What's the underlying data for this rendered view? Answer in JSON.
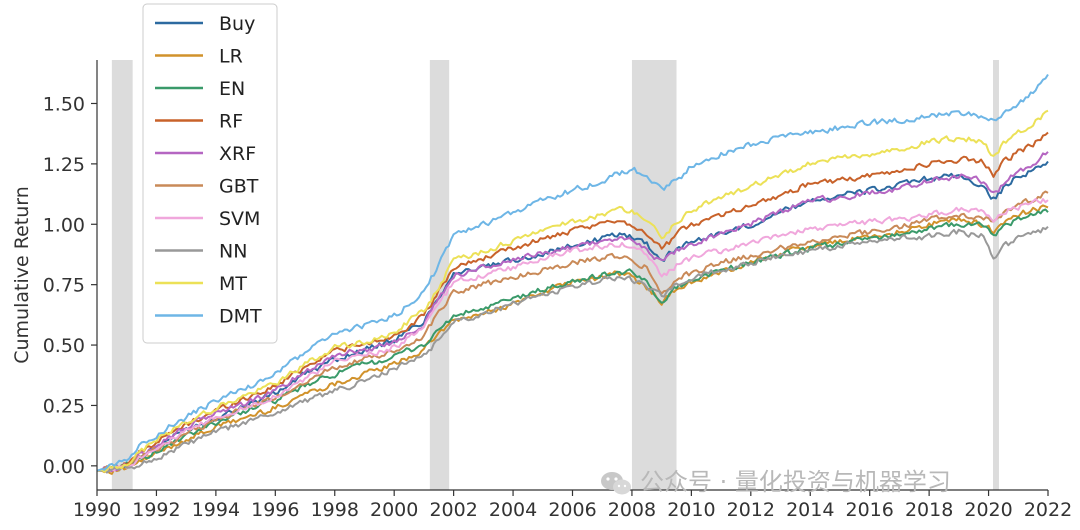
{
  "chart_data": {
    "type": "line",
    "title": "",
    "xlabel": "",
    "ylabel": "Cumulative Return",
    "xlim": [
      1990,
      2022
    ],
    "ylim": [
      -0.1,
      1.68
    ],
    "x_ticks": [
      1990,
      1992,
      1994,
      1996,
      1998,
      2000,
      2002,
      2004,
      2006,
      2008,
      2010,
      2012,
      2014,
      2016,
      2018,
      2020,
      2022
    ],
    "x_tick_labels": [
      "1990",
      "1992",
      "1994",
      "1996",
      "1998",
      "2000",
      "2002",
      "2004",
      "2006",
      "2008",
      "2010",
      "2012",
      "2014",
      "2016",
      "2018",
      "2020",
      "2022"
    ],
    "y_ticks": [
      0.0,
      0.25,
      0.5,
      0.75,
      1.0,
      1.25,
      1.5
    ],
    "y_tick_labels": [
      "0.00",
      "0.25",
      "0.50",
      "0.75",
      "1.00",
      "1.25",
      "1.50"
    ],
    "grid": false,
    "legend_position": "top-left",
    "recession_periods": [
      [
        1990.5,
        1991.2
      ],
      [
        2001.2,
        2001.85
      ],
      [
        2008.0,
        2009.5
      ],
      [
        2020.15,
        2020.35
      ]
    ],
    "shade_color": "#dcdcdc",
    "x": [
      1990,
      1990.5,
      1991,
      1991.5,
      1992,
      1993,
      1994,
      1995,
      1996,
      1997,
      1998,
      1999,
      2000,
      2000.5,
      2001,
      2001.5,
      2002,
      2003,
      2004,
      2005,
      2006,
      2007,
      2007.5,
      2008,
      2008.5,
      2009,
      2009.3,
      2009.5,
      2010,
      2011,
      2012,
      2013,
      2014,
      2015,
      2016,
      2017,
      2018,
      2019,
      2019.8,
      2020.2,
      2020.5,
      2021,
      2021.5,
      2022
    ],
    "series": [
      {
        "name": "Buy",
        "color": "#2c6aa0",
        "values": [
          -0.02,
          -0.01,
          0.0,
          0.04,
          0.08,
          0.15,
          0.2,
          0.25,
          0.3,
          0.38,
          0.44,
          0.48,
          0.52,
          0.56,
          0.6,
          0.7,
          0.8,
          0.82,
          0.85,
          0.88,
          0.91,
          0.94,
          0.96,
          0.95,
          0.92,
          0.85,
          0.88,
          0.9,
          0.93,
          0.96,
          1.0,
          1.05,
          1.1,
          1.12,
          1.14,
          1.16,
          1.19,
          1.2,
          1.16,
          1.1,
          1.15,
          1.2,
          1.22,
          1.26
        ]
      },
      {
        "name": "LR",
        "color": "#d1922b",
        "values": [
          -0.02,
          -0.02,
          -0.01,
          0.02,
          0.05,
          0.11,
          0.16,
          0.2,
          0.24,
          0.3,
          0.34,
          0.38,
          0.42,
          0.45,
          0.48,
          0.55,
          0.6,
          0.63,
          0.67,
          0.72,
          0.76,
          0.78,
          0.8,
          0.78,
          0.74,
          0.68,
          0.71,
          0.73,
          0.76,
          0.8,
          0.84,
          0.88,
          0.91,
          0.93,
          0.95,
          0.97,
          1.0,
          1.02,
          1.0,
          0.97,
          1.0,
          1.04,
          1.06,
          1.07
        ]
      },
      {
        "name": "EN",
        "color": "#3a9a6a",
        "values": [
          -0.02,
          -0.01,
          0.0,
          0.03,
          0.06,
          0.12,
          0.18,
          0.23,
          0.27,
          0.33,
          0.38,
          0.42,
          0.45,
          0.48,
          0.5,
          0.56,
          0.62,
          0.65,
          0.69,
          0.73,
          0.76,
          0.79,
          0.8,
          0.8,
          0.76,
          0.68,
          0.71,
          0.74,
          0.77,
          0.81,
          0.84,
          0.87,
          0.9,
          0.92,
          0.94,
          0.96,
          0.98,
          1.0,
          1.0,
          0.95,
          0.99,
          1.02,
          1.04,
          1.05
        ]
      },
      {
        "name": "RF",
        "color": "#c8622a",
        "values": [
          -0.02,
          -0.01,
          0.01,
          0.06,
          0.1,
          0.17,
          0.23,
          0.28,
          0.33,
          0.41,
          0.48,
          0.5,
          0.54,
          0.58,
          0.62,
          0.72,
          0.82,
          0.86,
          0.9,
          0.94,
          0.97,
          1.0,
          1.02,
          1.0,
          0.96,
          0.9,
          0.93,
          0.96,
          1.0,
          1.04,
          1.08,
          1.12,
          1.17,
          1.18,
          1.2,
          1.22,
          1.25,
          1.27,
          1.26,
          1.2,
          1.26,
          1.3,
          1.33,
          1.38
        ]
      },
      {
        "name": "XRF",
        "color": "#b566c2",
        "values": [
          -0.02,
          -0.01,
          0.0,
          0.05,
          0.09,
          0.16,
          0.22,
          0.26,
          0.31,
          0.39,
          0.46,
          0.48,
          0.51,
          0.55,
          0.59,
          0.69,
          0.79,
          0.82,
          0.85,
          0.88,
          0.91,
          0.93,
          0.94,
          0.93,
          0.9,
          0.84,
          0.87,
          0.89,
          0.92,
          0.96,
          1.0,
          1.05,
          1.1,
          1.11,
          1.13,
          1.15,
          1.18,
          1.2,
          1.18,
          1.12,
          1.17,
          1.22,
          1.25,
          1.3
        ]
      },
      {
        "name": "GBT",
        "color": "#c98a58",
        "values": [
          -0.02,
          -0.01,
          0.0,
          0.04,
          0.07,
          0.13,
          0.19,
          0.24,
          0.28,
          0.35,
          0.41,
          0.44,
          0.47,
          0.5,
          0.54,
          0.64,
          0.72,
          0.75,
          0.78,
          0.81,
          0.84,
          0.86,
          0.87,
          0.85,
          0.82,
          0.72,
          0.75,
          0.77,
          0.8,
          0.84,
          0.87,
          0.9,
          0.93,
          0.95,
          0.97,
          0.99,
          1.02,
          1.04,
          1.03,
          1.0,
          1.05,
          1.08,
          1.1,
          1.13
        ]
      },
      {
        "name": "SVM",
        "color": "#f0a7dc",
        "values": [
          -0.02,
          -0.01,
          0.0,
          0.04,
          0.08,
          0.14,
          0.2,
          0.24,
          0.29,
          0.36,
          0.43,
          0.46,
          0.49,
          0.53,
          0.57,
          0.67,
          0.76,
          0.79,
          0.82,
          0.86,
          0.89,
          0.91,
          0.92,
          0.91,
          0.88,
          0.78,
          0.81,
          0.83,
          0.86,
          0.89,
          0.92,
          0.95,
          0.98,
          1.0,
          1.01,
          1.02,
          1.04,
          1.06,
          1.05,
          1.02,
          1.05,
          1.07,
          1.09,
          1.1
        ]
      },
      {
        "name": "NN",
        "color": "#999999",
        "values": [
          -0.02,
          -0.02,
          -0.01,
          0.01,
          0.03,
          0.09,
          0.14,
          0.18,
          0.22,
          0.27,
          0.31,
          0.35,
          0.4,
          0.43,
          0.46,
          0.52,
          0.6,
          0.63,
          0.67,
          0.71,
          0.74,
          0.77,
          0.78,
          0.77,
          0.74,
          0.7,
          0.73,
          0.75,
          0.78,
          0.81,
          0.84,
          0.87,
          0.89,
          0.91,
          0.93,
          0.94,
          0.95,
          0.97,
          0.95,
          0.86,
          0.91,
          0.94,
          0.96,
          0.99
        ]
      },
      {
        "name": "MT",
        "color": "#ece157",
        "values": [
          -0.02,
          -0.01,
          0.01,
          0.06,
          0.11,
          0.18,
          0.24,
          0.29,
          0.34,
          0.42,
          0.49,
          0.51,
          0.55,
          0.6,
          0.64,
          0.74,
          0.85,
          0.89,
          0.93,
          0.98,
          1.01,
          1.04,
          1.06,
          1.06,
          1.02,
          0.95,
          0.98,
          1.01,
          1.06,
          1.11,
          1.16,
          1.2,
          1.25,
          1.27,
          1.29,
          1.31,
          1.34,
          1.36,
          1.34,
          1.28,
          1.34,
          1.38,
          1.42,
          1.47
        ]
      },
      {
        "name": "DMT",
        "color": "#6eb6e6",
        "values": [
          -0.02,
          0.0,
          0.03,
          0.09,
          0.13,
          0.2,
          0.27,
          0.32,
          0.38,
          0.47,
          0.55,
          0.58,
          0.62,
          0.67,
          0.72,
          0.83,
          0.95,
          1.0,
          1.05,
          1.1,
          1.14,
          1.18,
          1.21,
          1.23,
          1.2,
          1.14,
          1.17,
          1.18,
          1.24,
          1.29,
          1.33,
          1.36,
          1.38,
          1.4,
          1.42,
          1.43,
          1.45,
          1.46,
          1.45,
          1.43,
          1.46,
          1.5,
          1.55,
          1.62
        ]
      }
    ]
  },
  "watermark": {
    "text": "公众号 · 量化投资与机器学习",
    "icon": "wechat-icon"
  }
}
